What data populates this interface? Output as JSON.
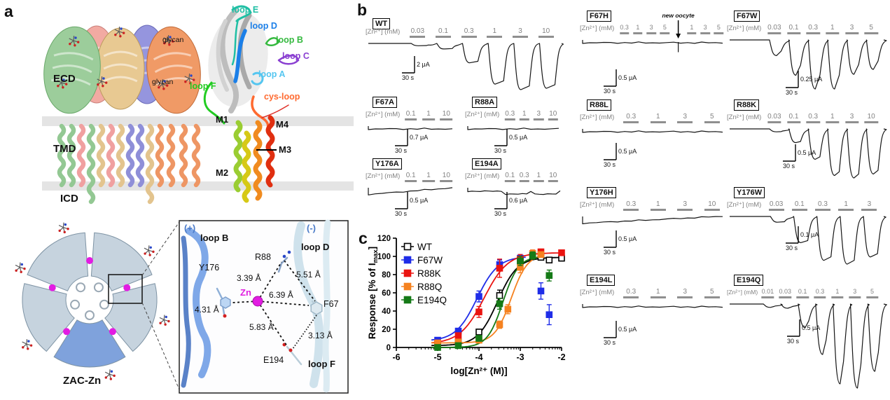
{
  "figure": {
    "panel_a_label": "a",
    "panel_b_label": "b",
    "panel_c_label": "c"
  },
  "colors": {
    "loop_e": "#1fbfa4",
    "loop_d": "#1b7fe8",
    "loop_b": "#35b93f",
    "loop_c": "#8a3fd1",
    "loop_a": "#55c6f0",
    "loop_f": "#22cc22",
    "cys_loop": "#ff6a30",
    "zn": "#e01ee0",
    "plus_minus": "#4a7ac8",
    "conc_text": "#828282",
    "trace": "#151515"
  },
  "a": {
    "domains": {
      "ecd": "ECD",
      "tmd": "TMD",
      "icd": "ICD"
    },
    "glycan_top": "glycan",
    "glycan_mid": "glycan",
    "loops": {
      "e": "loop E",
      "d": "loop D",
      "b": "loop B",
      "c": "loop C",
      "a": "loop A",
      "f": "loop F",
      "cys": "cys-loop"
    },
    "helices": {
      "m1": "M1",
      "m2": "M2",
      "m3": "M3",
      "m4": "M4"
    },
    "top_view_label": "ZAC-Zn",
    "inset": {
      "plus": "(+)",
      "minus": "(-)",
      "loop_b": "loop B",
      "loop_d": "loop D",
      "loop_f": "loop F",
      "y176": "Y176",
      "r88": "R88",
      "f67": "F67",
      "e194": "E194",
      "zn": "Zn",
      "dist_zn_r88": "3.39 Å",
      "dist_r88_f67": "5.51 Å",
      "dist_zn_f67": "6.39 Å",
      "dist_zn_y176": "4.31 Å",
      "dist_zn_e194": "5.83 Å",
      "dist_f67_e194": "3.13 Å"
    }
  },
  "b": {
    "zn_prefix": "[Zn²⁺] (mM)",
    "new_oocyte_label": "new oocyte",
    "traces": [
      {
        "id": "WT",
        "label": "WT",
        "conc": [
          "0.03",
          "0.1",
          "0.3",
          "1",
          "3",
          "10"
        ],
        "scale_current": "2 μA",
        "scale_time": "30 s",
        "profile": "pulses",
        "amps": [
          0.05,
          0.12,
          0.42,
          0.88,
          1.0,
          0.97
        ]
      },
      {
        "id": "F67A",
        "label": "F67A",
        "conc": [
          "0.1",
          "1",
          "10"
        ],
        "scale_current": "0.7 μA",
        "scale_time": "30 s",
        "profile": "flat"
      },
      {
        "id": "R88A",
        "label": "R88A",
        "conc": [
          "0.3",
          "1",
          "3",
          "10"
        ],
        "scale_current": "0.5 μA",
        "scale_time": "30 s",
        "profile": "flat"
      },
      {
        "id": "Y176A",
        "label": "Y176A",
        "conc": [
          "0.1",
          "1",
          "10"
        ],
        "scale_current": "0.5 μA",
        "scale_time": "30 s",
        "profile": "drift"
      },
      {
        "id": "E194A",
        "label": "E194A",
        "conc": [
          "0.1",
          "0.3",
          "1",
          "10"
        ],
        "scale_current": "0.6 μA",
        "scale_time": "30 s",
        "profile": "bumps"
      },
      {
        "id": "F67H",
        "label": "F67H",
        "conc": [
          "0.3",
          "1",
          "3",
          "5"
        ],
        "conc2": [
          "1",
          "3",
          "5"
        ],
        "scale_current": "0.5 μA",
        "scale_time": "30 s",
        "profile": "flat-artifact"
      },
      {
        "id": "R88L",
        "label": "R88L",
        "conc": [
          "0.3",
          "1",
          "3",
          "5"
        ],
        "scale_current": "0.5 μA",
        "scale_time": "30 s",
        "profile": "flat"
      },
      {
        "id": "Y176H",
        "label": "Y176H",
        "conc": [
          "0.3",
          "1",
          "3",
          "10"
        ],
        "scale_current": "0.5 μA",
        "scale_time": "30 s",
        "profile": "drift"
      },
      {
        "id": "E194L",
        "label": "E194L",
        "conc": [
          "0.3",
          "1",
          "3",
          "5"
        ],
        "scale_current": "0.5 μA",
        "scale_time": "30 s",
        "profile": "flat"
      },
      {
        "id": "F67W",
        "label": "F67W",
        "conc": [
          "0.03",
          "0.1",
          "0.3",
          "1",
          "3",
          "5"
        ],
        "scale_current": "0.25 μA",
        "scale_time": "30 s",
        "profile": "pulses",
        "desens": true,
        "amps": [
          0.32,
          0.72,
          1.0,
          1.0,
          0.7,
          0.6
        ]
      },
      {
        "id": "R88K",
        "label": "R88K",
        "conc": [
          "0.03",
          "0.1",
          "0.3",
          "1",
          "3",
          "10"
        ],
        "scale_current": "0.5 μA",
        "scale_time": "30 s",
        "profile": "pulses",
        "amps": [
          0.06,
          0.28,
          0.62,
          0.95,
          1.0,
          0.92
        ]
      },
      {
        "id": "Y176W",
        "label": "Y176W",
        "conc": [
          "0.03",
          "0.1",
          "0.3",
          "1",
          "3"
        ],
        "scale_current": "0.1 μA",
        "scale_time": "30 s",
        "profile": "pulses",
        "amps": [
          0.12,
          0.55,
          0.92,
          1.0,
          0.85
        ]
      },
      {
        "id": "E194Q",
        "label": "E194Q",
        "conc": [
          "0.01",
          "0.03",
          "0.1",
          "0.3",
          "1",
          "3",
          "5"
        ],
        "scale_current": "0.5 μA",
        "scale_time": "30 s",
        "profile": "pulses",
        "desens": true,
        "amps": [
          0.04,
          0.05,
          0.28,
          0.6,
          0.95,
          1.0,
          0.8
        ]
      }
    ]
  },
  "chart_data": {
    "type": "scatter",
    "xlabel": "log[Zn²⁺ (M)]",
    "ylabel_pre": "Response [% of I",
    "ylabel_sub": "max",
    "ylabel_post": "]",
    "xlim": [
      -6,
      -2
    ],
    "ylim": [
      0,
      120
    ],
    "ytick_step": 20,
    "xticks": [
      -6,
      -5,
      -4,
      -3,
      -2
    ],
    "legend_position": "top-left",
    "series": [
      {
        "name": "WT",
        "color": "#000000",
        "marker": "open-square",
        "x": [
          -5,
          -4.5,
          -4,
          -3.5,
          -3,
          -2.7,
          -2.5,
          -2.3,
          -2
        ],
        "y": [
          2,
          6,
          17,
          57,
          95,
          100,
          99,
          96,
          98
        ],
        "err": [
          2,
          2,
          3,
          6,
          4,
          3,
          3,
          3,
          3
        ],
        "fit": {
          "bottom": 2,
          "top": 99,
          "logec50": -3.55,
          "hill": 1.8,
          "xmax": -2.0
        }
      },
      {
        "name": "F67W",
        "color": "#1f2de8",
        "marker": "filled-square",
        "x": [
          -5,
          -4.5,
          -4,
          -3.5,
          -3,
          -2.5,
          -2.3
        ],
        "y": [
          8,
          18,
          56,
          91,
          98,
          62,
          36
        ],
        "err": [
          2,
          3,
          6,
          5,
          4,
          9,
          11
        ],
        "fit": {
          "bottom": 7,
          "top": 100,
          "logec50": -4.05,
          "hill": 1.7,
          "xmax": -2.85
        }
      },
      {
        "name": "R88K",
        "color": "#ea1410",
        "marker": "filled-square",
        "x": [
          -5,
          -4.5,
          -4,
          -3.5,
          -3,
          -2.7,
          -2.5,
          -2
        ],
        "y": [
          4,
          13,
          39,
          87,
          97,
          103,
          105,
          104
        ],
        "err": [
          2,
          3,
          6,
          10,
          5,
          4,
          3,
          3
        ],
        "fit": {
          "bottom": 4,
          "top": 104,
          "logec50": -3.88,
          "hill": 1.5,
          "xmax": -2.0
        }
      },
      {
        "name": "R88Q",
        "color": "#f58220",
        "marker": "filled-square",
        "x": [
          -5,
          -4.5,
          -4,
          -3.5,
          -3.3,
          -3,
          -2.7,
          -2.5
        ],
        "y": [
          5,
          6,
          8,
          25,
          42,
          88,
          103,
          102
        ],
        "err": [
          2,
          2,
          2,
          4,
          5,
          6,
          4,
          3
        ],
        "fit": {
          "bottom": 5,
          "top": 103,
          "logec50": -3.22,
          "hill": 2.2,
          "xmax": -2.45
        }
      },
      {
        "name": "E194Q",
        "color": "#157a17",
        "marker": "filled-square",
        "x": [
          -5,
          -4.5,
          -4,
          -3.5,
          -3,
          -2.7,
          -2.3
        ],
        "y": [
          0,
          2,
          10,
          48,
          95,
          101,
          79
        ],
        "err": [
          1,
          1,
          3,
          6,
          5,
          4,
          6
        ],
        "fit": {
          "bottom": 0,
          "top": 100,
          "logec50": -3.42,
          "hill": 2.3,
          "xmax": -2.55
        }
      }
    ]
  }
}
